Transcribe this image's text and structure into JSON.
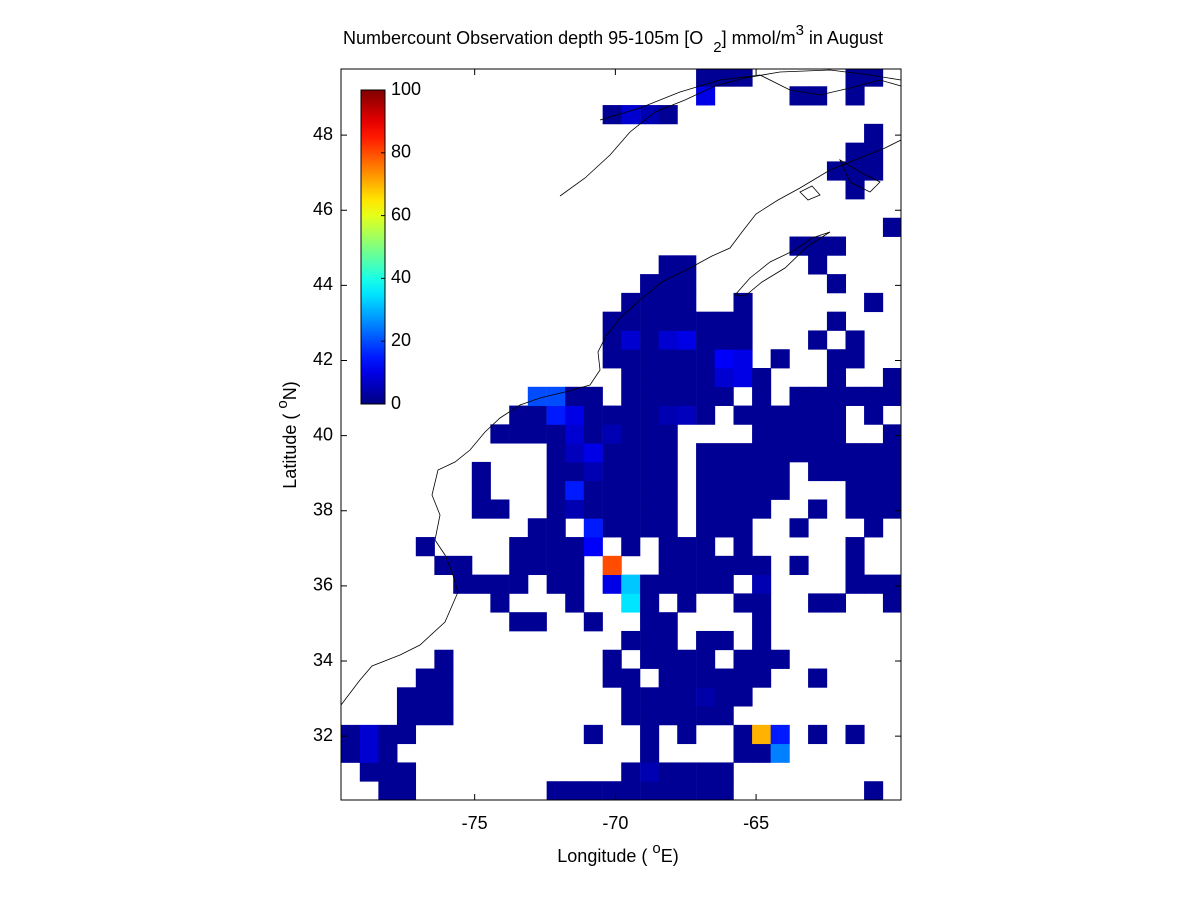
{
  "chart_data": {
    "type": "heatmap",
    "title": [
      "Numbercount Observation depth 95-105m [O",
      "2",
      "] mmol/m",
      "3",
      " in August"
    ],
    "xlabel": [
      "Longitude ( ",
      "o",
      "E)"
    ],
    "ylabel": [
      "Latitude ( ",
      "o",
      "N)"
    ],
    "xlim": [
      -79.75,
      -59.85
    ],
    "ylim": [
      30.3,
      49.76
    ],
    "xticks": [
      -75,
      -70,
      -65
    ],
    "yticks": [
      32,
      34,
      36,
      38,
      40,
      42,
      44,
      46,
      48
    ],
    "colormap": "jet",
    "colorbar": {
      "lim": [
        0,
        100
      ],
      "ticks": [
        0,
        20,
        40,
        60,
        80,
        100
      ]
    },
    "rows": [
      {
        "lat": 30.55,
        "lon": [
          -78.09,
          -77.43,
          -72.11,
          -71.45,
          -70.79,
          -70.12,
          -69.46,
          -68.79,
          -68.13,
          -67.47,
          -66.8,
          -66.14,
          -60.83
        ],
        "values": [
          2,
          2,
          2,
          2,
          2,
          2,
          2,
          2,
          2,
          2,
          2,
          2,
          2
        ]
      },
      {
        "lat": 31.05,
        "lon": [
          -78.75,
          -78.09,
          -77.43,
          -69.46,
          -68.79,
          -68.13,
          -67.47,
          -66.8,
          -66.14
        ],
        "values": [
          2,
          2,
          2,
          2,
          5,
          2,
          2,
          2,
          2
        ]
      },
      {
        "lat": 31.55,
        "lon": [
          -79.42,
          -78.75,
          -78.09,
          -68.79,
          -65.47,
          -64.81,
          -64.15
        ],
        "values": [
          2,
          8,
          2,
          2,
          2,
          2,
          25
        ]
      },
      {
        "lat": 32.05,
        "lon": [
          -79.42,
          -78.75,
          -78.09,
          -77.43,
          -70.79,
          -68.79,
          -67.47,
          -65.47,
          -64.81,
          -64.15,
          -62.82,
          -61.49
        ],
        "values": [
          2,
          8,
          2,
          2,
          2,
          2,
          2,
          2,
          70,
          15,
          2,
          2
        ]
      },
      {
        "lat": 32.55,
        "lon": [
          -77.43,
          -76.76,
          -76.1,
          -69.46,
          -68.79,
          -68.13,
          -67.47,
          -66.8,
          -66.14
        ],
        "values": [
          2,
          2,
          2,
          2,
          2,
          2,
          2,
          2,
          2
        ]
      },
      {
        "lat": 33.05,
        "lon": [
          -77.43,
          -76.76,
          -76.1,
          -69.46,
          -68.79,
          -68.13,
          -67.47,
          -66.8,
          -66.14,
          -65.47
        ],
        "values": [
          2,
          2,
          2,
          2,
          2,
          2,
          2,
          4,
          2,
          2
        ]
      },
      {
        "lat": 33.55,
        "lon": [
          -76.76,
          -76.1,
          -70.12,
          -69.46,
          -68.13,
          -67.47,
          -66.8,
          -66.14,
          -65.47,
          -64.81,
          -62.82
        ],
        "values": [
          2,
          2,
          2,
          2,
          2,
          2,
          2,
          2,
          2,
          2,
          2
        ]
      },
      {
        "lat": 34.05,
        "lon": [
          -76.1,
          -70.12,
          -68.79,
          -68.13,
          -67.47,
          -66.8,
          -65.47,
          -64.81,
          -64.15
        ],
        "values": [
          2,
          2,
          2,
          2,
          2,
          2,
          2,
          2,
          2
        ]
      },
      {
        "lat": 34.55,
        "lon": [
          -69.46,
          -68.79,
          -68.13,
          -66.8,
          -66.14,
          -64.81
        ],
        "values": [
          2,
          2,
          2,
          2,
          2,
          2
        ]
      },
      {
        "lat": 35.05,
        "lon": [
          -73.44,
          -72.78,
          -70.79,
          -68.79,
          -68.13,
          -64.81
        ],
        "values": [
          2,
          2,
          2,
          2,
          2,
          2
        ]
      },
      {
        "lat": 35.55,
        "lon": [
          -74.11,
          -71.45,
          -69.46,
          -68.79,
          -67.47,
          -65.47,
          -64.81,
          -62.82,
          -62.15,
          -60.16
        ],
        "values": [
          2,
          2,
          35,
          2,
          2,
          2,
          2,
          2,
          2,
          2
        ]
      },
      {
        "lat": 36.05,
        "lon": [
          -75.43,
          -74.77,
          -74.11,
          -73.44,
          -72.11,
          -71.45,
          -70.12,
          -69.46,
          -68.79,
          -68.13,
          -67.47,
          -66.8,
          -66.14,
          -64.81,
          -61.49,
          -60.83,
          -60.16
        ],
        "values": [
          2,
          2,
          2,
          2,
          2,
          2,
          10,
          32,
          2,
          2,
          2,
          2,
          2,
          5,
          2,
          2,
          2
        ]
      },
      {
        "lat": 36.55,
        "lon": [
          -76.1,
          -75.43,
          -73.44,
          -72.78,
          -72.11,
          -71.45,
          -70.12,
          -68.13,
          -67.47,
          -66.8,
          -66.14,
          -65.47,
          -64.81,
          -63.48,
          -61.49
        ],
        "values": [
          2,
          2,
          2,
          2,
          2,
          2,
          80,
          2,
          2,
          2,
          2,
          2,
          2,
          2,
          2
        ]
      },
      {
        "lat": 37.05,
        "lon": [
          -76.76,
          -73.44,
          -72.78,
          -72.11,
          -71.45,
          -70.79,
          -69.46,
          -68.13,
          -67.47,
          -66.8,
          -65.47,
          -61.49
        ],
        "values": [
          2,
          2,
          2,
          2,
          2,
          12,
          2,
          2,
          2,
          2,
          2,
          2
        ]
      },
      {
        "lat": 37.55,
        "lon": [
          -72.78,
          -72.11,
          -70.79,
          -70.12,
          -69.46,
          -68.79,
          -68.13,
          -66.8,
          -66.14,
          -65.47,
          -63.48,
          -60.83
        ],
        "values": [
          2,
          2,
          15,
          2,
          2,
          2,
          2,
          2,
          2,
          2,
          2,
          2
        ]
      },
      {
        "lat": 38.05,
        "lon": [
          -74.77,
          -74.11,
          -72.11,
          -71.45,
          -70.79,
          -70.12,
          -69.46,
          -68.79,
          -68.13,
          -66.8,
          -66.14,
          -65.47,
          -64.81,
          -62.82,
          -61.49,
          -60.83,
          -60.16
        ],
        "values": [
          2,
          2,
          2,
          5,
          2,
          2,
          2,
          2,
          2,
          2,
          2,
          2,
          2,
          2,
          2,
          2,
          2
        ]
      },
      {
        "lat": 38.55,
        "lon": [
          -74.77,
          -72.11,
          -71.45,
          -70.79,
          -70.12,
          -69.46,
          -68.79,
          -68.13,
          -66.8,
          -66.14,
          -65.47,
          -64.81,
          -64.15,
          -61.49,
          -60.83,
          -60.16
        ],
        "values": [
          2,
          2,
          15,
          2,
          2,
          2,
          2,
          2,
          2,
          2,
          2,
          2,
          2,
          2,
          2,
          2
        ]
      },
      {
        "lat": 39.05,
        "lon": [
          -74.77,
          -72.11,
          -71.45,
          -70.79,
          -70.12,
          -69.46,
          -68.79,
          -68.13,
          -66.8,
          -66.14,
          -65.47,
          -64.81,
          -64.15,
          -62.82,
          -62.15,
          -61.49,
          -60.83,
          -60.16
        ],
        "values": [
          2,
          2,
          2,
          5,
          2,
          2,
          2,
          2,
          2,
          2,
          2,
          2,
          2,
          2,
          2,
          2,
          2,
          2
        ]
      },
      {
        "lat": 39.55,
        "lon": [
          -72.11,
          -71.45,
          -70.79,
          -70.12,
          -69.46,
          -68.79,
          -68.13,
          -66.8,
          -66.14,
          -65.47,
          -64.81,
          -64.15,
          -63.48,
          -62.82,
          -62.15,
          -61.49,
          -60.83,
          -60.16
        ],
        "values": [
          2,
          6,
          10,
          2,
          2,
          2,
          2,
          2,
          2,
          2,
          2,
          2,
          2,
          2,
          2,
          2,
          2,
          2
        ]
      },
      {
        "lat": 40.05,
        "lon": [
          -74.11,
          -73.44,
          -72.78,
          -72.11,
          -71.45,
          -70.79,
          -70.12,
          -69.46,
          -68.79,
          -68.13,
          -64.81,
          -64.15,
          -63.48,
          -62.82,
          -62.15,
          -60.16
        ],
        "values": [
          2,
          2,
          2,
          2,
          8,
          2,
          5,
          2,
          2,
          2,
          2,
          2,
          2,
          2,
          2,
          2
        ]
      },
      {
        "lat": 40.55,
        "lon": [
          -73.44,
          -72.78,
          -72.11,
          -71.45,
          -70.79,
          -70.12,
          -69.46,
          -68.79,
          -68.13,
          -67.47,
          -66.8,
          -65.47,
          -64.81,
          -64.15,
          -63.48,
          -62.82,
          -62.15,
          -60.83
        ],
        "values": [
          2,
          2,
          15,
          10,
          2,
          2,
          2,
          2,
          5,
          6,
          2,
          2,
          2,
          2,
          2,
          2,
          2,
          2
        ]
      },
      {
        "lat": 41.05,
        "lon": [
          -72.78,
          -72.11,
          -71.45,
          -70.79,
          -69.46,
          -68.79,
          -68.13,
          -67.47,
          -66.8,
          -66.14,
          -64.81,
          -63.48,
          -62.82,
          -62.15,
          -61.49,
          -60.83,
          -60.16
        ],
        "values": [
          20,
          20,
          2,
          2,
          2,
          2,
          2,
          2,
          2,
          2,
          2,
          2,
          2,
          2,
          2,
          2,
          2
        ]
      },
      {
        "lat": 41.55,
        "lon": [
          -69.46,
          -68.79,
          -68.13,
          -67.47,
          -66.8,
          -66.14,
          -65.47,
          -64.81,
          -62.15,
          -60.16
        ],
        "values": [
          2,
          2,
          2,
          2,
          2,
          8,
          10,
          2,
          2,
          2
        ]
      },
      {
        "lat": 42.05,
        "lon": [
          -70.12,
          -69.46,
          -68.79,
          -68.13,
          -67.47,
          -66.8,
          -66.14,
          -65.47,
          -64.15,
          -62.15,
          -61.49
        ],
        "values": [
          2,
          2,
          2,
          2,
          2,
          2,
          12,
          10,
          2,
          2,
          2
        ]
      },
      {
        "lat": 42.55,
        "lon": [
          -70.12,
          -69.46,
          -68.79,
          -68.13,
          -67.47,
          -66.8,
          -66.14,
          -65.47,
          -62.82,
          -61.49
        ],
        "values": [
          2,
          8,
          2,
          8,
          10,
          2,
          2,
          2,
          2,
          2
        ]
      },
      {
        "lat": 43.05,
        "lon": [
          -70.12,
          -69.46,
          -68.79,
          -68.13,
          -67.47,
          -66.8,
          -66.14,
          -65.47,
          -62.15
        ],
        "values": [
          2,
          2,
          2,
          2,
          2,
          2,
          2,
          2,
          2
        ]
      },
      {
        "lat": 43.55,
        "lon": [
          -69.46,
          -68.79,
          -68.13,
          -67.47,
          -65.47,
          -60.83
        ],
        "values": [
          2,
          2,
          2,
          2,
          2,
          2
        ]
      },
      {
        "lat": 44.05,
        "lon": [
          -68.79,
          -68.13,
          -67.47,
          -62.15
        ],
        "values": [
          2,
          2,
          2,
          2
        ]
      },
      {
        "lat": 44.55,
        "lon": [
          -68.13,
          -67.47,
          -62.82
        ],
        "values": [
          2,
          2,
          2
        ]
      },
      {
        "lat": 45.05,
        "lon": [
          -63.48,
          -62.82,
          -62.15
        ],
        "values": [
          2,
          2,
          2
        ]
      },
      {
        "lat": 45.55,
        "lon": [
          -60.16
        ],
        "values": [
          2
        ]
      },
      {
        "lat": 46.55,
        "lon": [
          -61.49
        ],
        "values": [
          2
        ]
      },
      {
        "lat": 47.05,
        "lon": [
          -62.15,
          -61.49,
          -60.83
        ],
        "values": [
          2,
          2,
          2
        ]
      },
      {
        "lat": 47.55,
        "lon": [
          -61.49,
          -60.83
        ],
        "values": [
          2,
          2
        ]
      },
      {
        "lat": 48.05,
        "lon": [
          -60.83
        ],
        "values": [
          2
        ]
      },
      {
        "lat": 48.55,
        "lon": [
          -70.12,
          -69.46,
          -68.79,
          -68.13
        ],
        "values": [
          2,
          8,
          5,
          2
        ]
      },
      {
        "lat": 49.05,
        "lon": [
          -66.8,
          -63.48,
          -62.82,
          -61.49
        ],
        "values": [
          10,
          2,
          2,
          2
        ]
      },
      {
        "lat": 49.55,
        "lon": [
          -66.8,
          -66.14,
          -65.47,
          -61.49,
          -60.83
        ],
        "values": [
          2,
          2,
          2,
          2,
          2
        ]
      }
    ]
  }
}
